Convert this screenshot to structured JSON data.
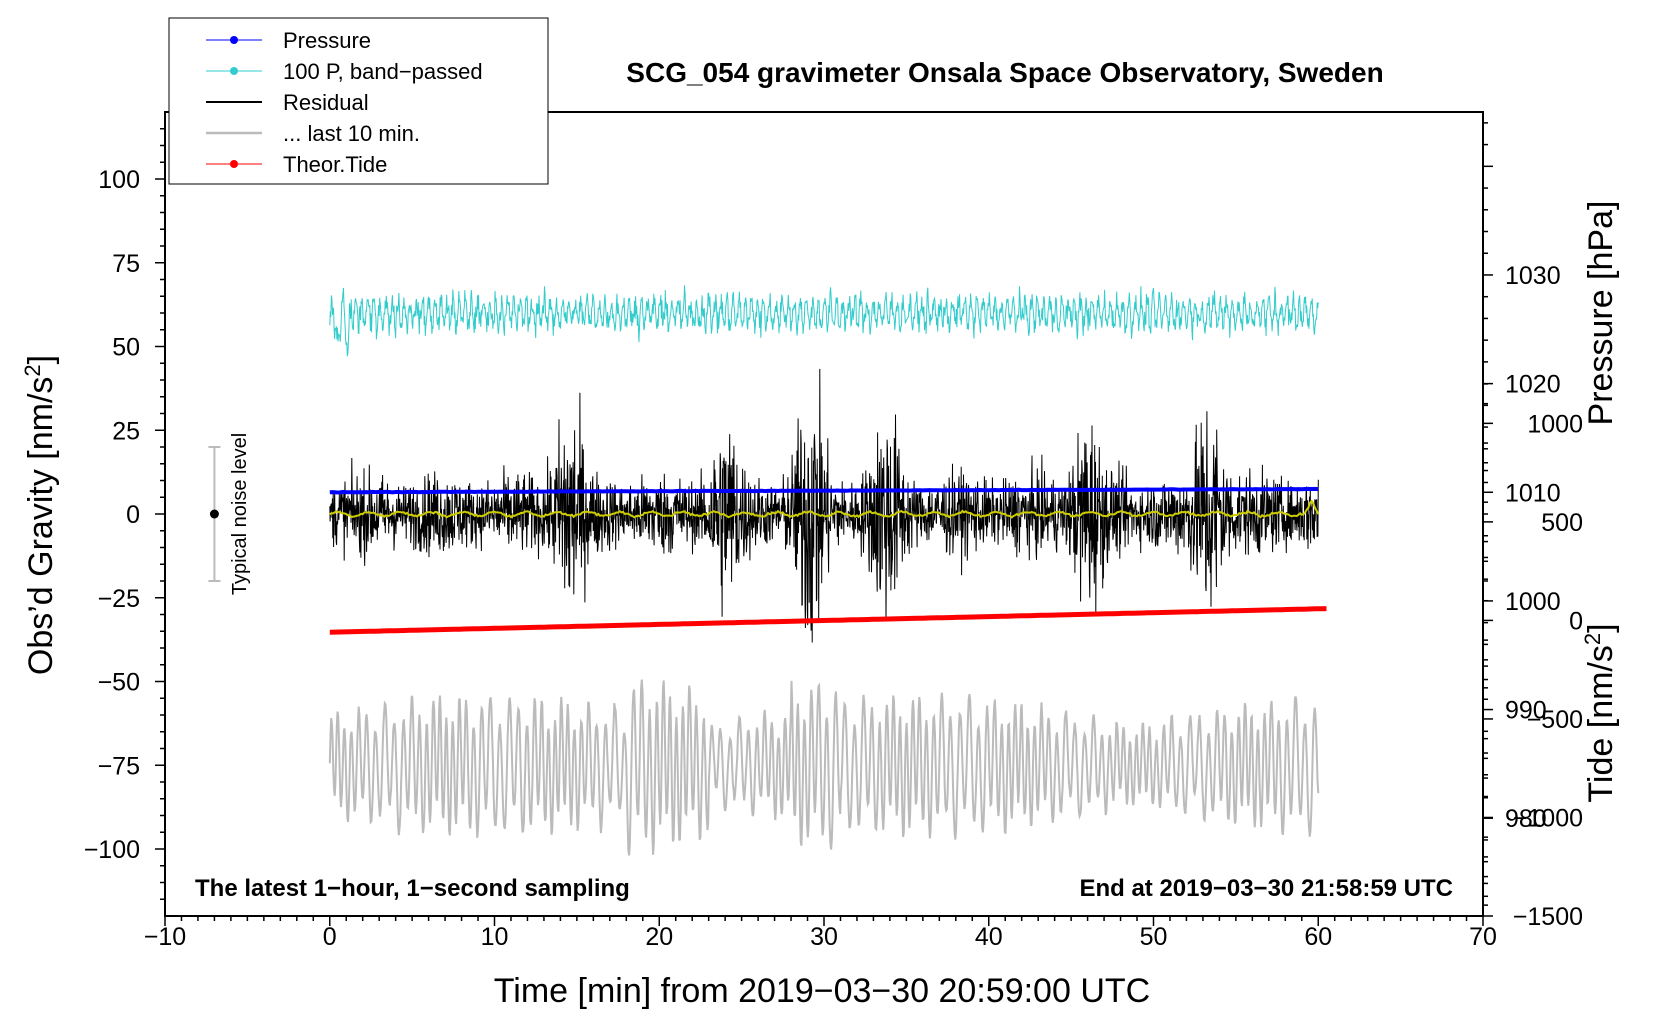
{
  "chart_data": {
    "type": "line",
    "title": "SCG_054 gravimeter Onsala Space Observatory, Sweden",
    "xlabel": "Time [min] from 2019−03−30 20:59:00 UTC",
    "ylabel_left_main": "Obs’d Gravity [nm/s",
    "ylabel_left_sup": "2",
    "ylabel_left_close": "]",
    "ylabel_right_pressure": "Pressure [hPa]",
    "ylabel_right_tide_main": "Tide [nm/s",
    "ylabel_right_tide_sup": "2",
    "ylabel_right_tide_close": "]",
    "xlim": [
      -10,
      70
    ],
    "ylim_gravity": [
      -120,
      120
    ],
    "ylim_pressure": [
      971,
      1045
    ],
    "ylim_tide": [
      -1500,
      2580
    ],
    "x_ticks": [
      "−10",
      "0",
      "10",
      "20",
      "30",
      "40",
      "50",
      "60",
      "70"
    ],
    "x_tick_values": [
      -10,
      0,
      10,
      20,
      30,
      40,
      50,
      60,
      70
    ],
    "gravity_ticks": [
      "100",
      "75",
      "50",
      "25",
      "0",
      "−25",
      "−50",
      "−75",
      "−100"
    ],
    "gravity_tick_values": [
      100,
      75,
      50,
      25,
      0,
      -25,
      -50,
      -75,
      -100
    ],
    "pressure_ticks": [
      "1030",
      "1020",
      "1010",
      "1000",
      "990",
      "980"
    ],
    "pressure_tick_values": [
      1030,
      1020,
      1010,
      1000,
      990,
      980
    ],
    "tide_ticks": [
      "1000",
      "500",
      "0",
      "−500",
      "−1000",
      "−1500"
    ],
    "tide_tick_values": [
      1000,
      500,
      0,
      -500,
      -1000,
      -1500
    ],
    "series": [
      {
        "name": "Pressure",
        "color": "#0000ff",
        "axis": "pressure",
        "x_range": [
          0,
          60
        ],
        "start": 1010.0,
        "end": 1010.3
      },
      {
        "name": "100 P, band−passed",
        "color": "#33cccc",
        "axis": "gravity",
        "x_range": [
          0,
          60
        ],
        "baseline": 60,
        "amplitude": 6
      },
      {
        "name": "Residual",
        "color": "#000000",
        "axis": "gravity",
        "x_range": [
          0,
          60
        ],
        "baseline": 0,
        "amplitude": 25
      },
      {
        "name": "... last 10 min.",
        "color": "#bbbbbb",
        "axis": "gravity",
        "x_range": [
          0,
          60
        ],
        "baseline": -75,
        "amplitude": 20
      },
      {
        "name": "Theor.Tide",
        "color": "#ff0000",
        "axis": "tide",
        "x_range": [
          0,
          60.5
        ],
        "start": -60,
        "end": 60
      },
      {
        "name": "Residual, smoothed",
        "color": "#cccc00",
        "axis": "gravity",
        "x_range": [
          0,
          60
        ],
        "baseline": 0,
        "amplitude": 1
      }
    ],
    "legend": [
      {
        "label": "Pressure",
        "color": "#0000ff",
        "marker": true,
        "width": 1
      },
      {
        "label": "100 P, band−passed",
        "color": "#33cccc",
        "marker": true,
        "width": 1
      },
      {
        "label": "Residual",
        "color": "#000000",
        "marker": false,
        "width": 2
      },
      {
        "label": "... last 10 min.",
        "color": "#bbbbbb",
        "marker": false,
        "width": 2.5
      },
      {
        "label": "Theor.Tide",
        "color": "#ff0000",
        "marker": true,
        "width": 1
      }
    ],
    "legend_position": "top-left",
    "noise_indicator": {
      "label": "Typical noise level",
      "x": -7,
      "center": 0,
      "half_range": 20
    },
    "annotation_left": "The latest 1−hour, 1−second sampling",
    "annotation_right": "End at 2019−03−30 21:58:59 UTC"
  }
}
